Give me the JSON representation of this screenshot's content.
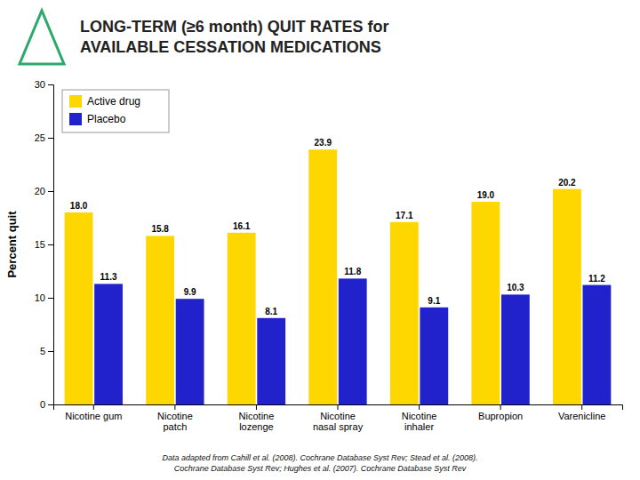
{
  "chart_data": {
    "type": "bar",
    "title": "LONG-TERM (≥6 month) QUIT RATES for\nAVAILABLE CESSATION MEDICATIONS",
    "y_label": "Percent quit",
    "categories": [
      "Nicotine gum",
      "Nicotine\npatch",
      "Nicotine\nlozenge",
      "Nicotine\nnasal spray",
      "Nicotine\ninhaler",
      "Bupropion",
      "Varenicline"
    ],
    "series": [
      {
        "name": "Active drug",
        "color": "#FFD700",
        "values": [
          18.0,
          15.8,
          16.1,
          23.9,
          17.1,
          19.0,
          20.2
        ],
        "value_labels": [
          "18.0",
          "15.8",
          "16.1",
          "23.9",
          "17.1",
          "19.0",
          "20.2"
        ]
      },
      {
        "name": "Placebo",
        "color": "#2222CC",
        "values": [
          11.3,
          9.9,
          8.1,
          11.8,
          9.1,
          10.3,
          11.2
        ],
        "value_labels": [
          "11.3",
          "9.9",
          "8.1",
          "11.8",
          "9.1",
          "10.3",
          "11.2"
        ]
      }
    ],
    "ylim": [
      0,
      30
    ],
    "yticks": [
      0,
      5,
      10,
      15,
      20,
      25,
      30
    ],
    "grid": false,
    "legend": "upper left",
    "data_labels": true,
    "annotations": [
      "Data adapted from Cahill et al. (2008). Cochrane Database Syst Rev; Stead et al. (2008).",
      "Cochrane Database Syst Rev;  Hughes et al. (2007). Cochrane Database Syst Rev"
    ]
  }
}
